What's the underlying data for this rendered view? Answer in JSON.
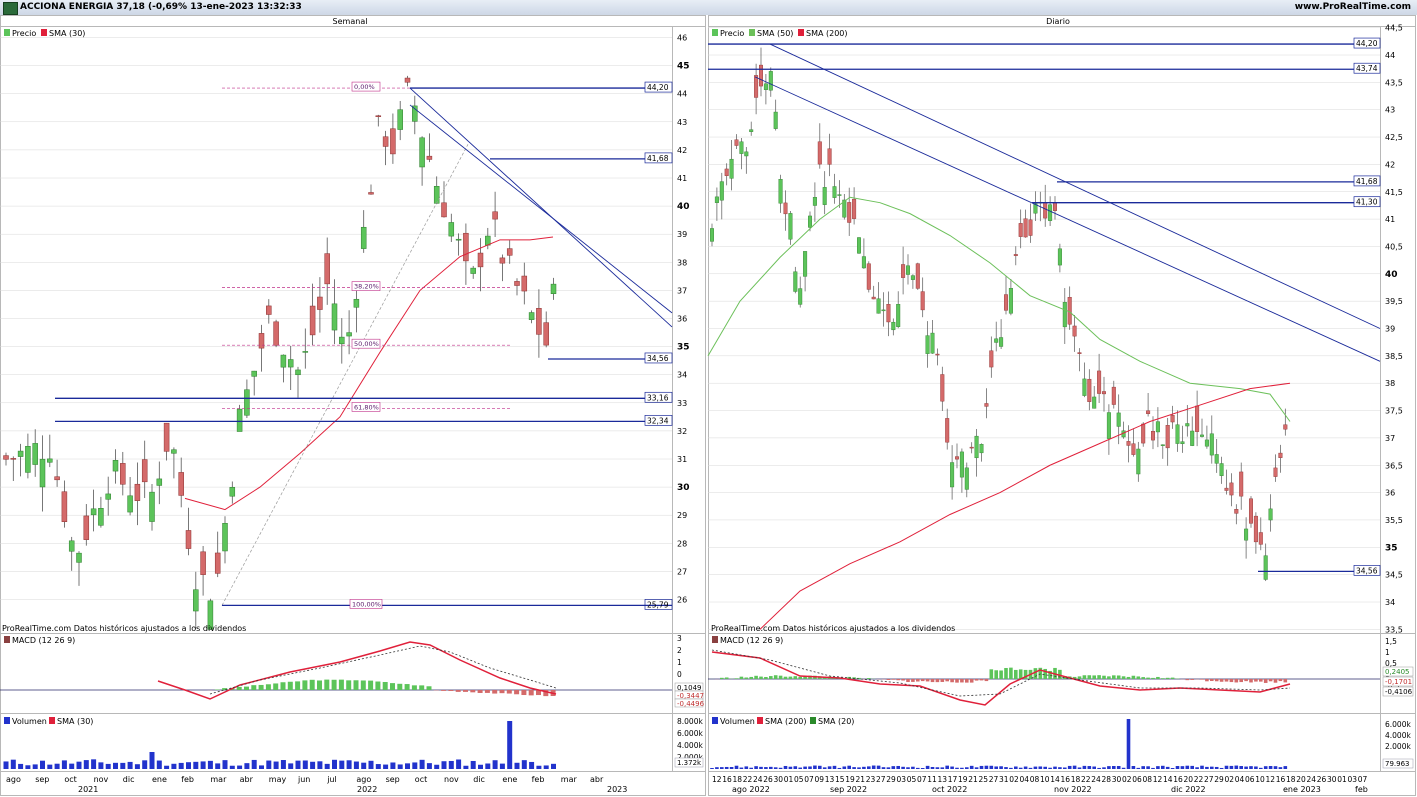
{
  "window": {
    "title": "ACCIONA ENERGIA 37,18 (-0,69% 13-ene-2023 13:32:33",
    "site": "www.ProRealTime.com",
    "icon": "prorealtime-logo-icon"
  },
  "colors": {
    "up": "#5cc45a",
    "down": "#d46a6a",
    "sma_red": "#e0203a",
    "sma_green": "#6cc05a",
    "blue_line": "#1a2a9a",
    "fib": "#c0308a",
    "volume": "#2233cc",
    "grid": "#d8d8d8"
  },
  "charts": [
    {
      "id": "weekly",
      "title": "Semanal",
      "legend": [
        {
          "label": "Precio",
          "color": "#5cc45a"
        },
        {
          "label": "SMA (30)",
          "color": "#e0203a"
        }
      ],
      "footer": "ProRealTime.com  Datos históricos ajustados a los dividendos",
      "price_axis_ticks": [
        26,
        27,
        28,
        29,
        30,
        31,
        32,
        33,
        34,
        35,
        36,
        37,
        38,
        39,
        40,
        41,
        42,
        43,
        44,
        45,
        46
      ],
      "bold_ticks": [
        30,
        35,
        40,
        45
      ],
      "level_labels": [
        "44,20",
        "41,68",
        "34,56",
        "33,16",
        "32,34",
        "25,79"
      ],
      "fib_labels": [
        "0,00%",
        "38,20%",
        "50,00%",
        "61,80%",
        "100,00%"
      ],
      "macd": {
        "legend": "MACD (12 26 9)",
        "ticks": [
          "3",
          "2",
          "1",
          "0",
          "-1"
        ],
        "values": [
          "0,1049",
          "-0,3447",
          "-0,4496"
        ]
      },
      "volume": {
        "legend": [
          "Volumen",
          "SMA (30)"
        ],
        "ticks": [
          "8.000k",
          "6.000k",
          "4.000k",
          "2.000k"
        ],
        "value": "1.372k"
      },
      "x_months": [
        "ago",
        "sep",
        "oct",
        "nov",
        "dic",
        "ene",
        "feb",
        "mar",
        "abr",
        "may",
        "jun",
        "jul",
        "ago",
        "sep",
        "oct",
        "nov",
        "dic",
        "ene",
        "feb",
        "mar",
        "abr"
      ],
      "x_years": [
        "2021",
        "2022",
        "2023"
      ]
    },
    {
      "id": "daily",
      "title": "Diario",
      "legend": [
        {
          "label": "Precio",
          "color": "#5cc45a"
        },
        {
          "label": "SMA (50)",
          "color": "#6cc05a"
        },
        {
          "label": "SMA (200)",
          "color": "#e0203a"
        }
      ],
      "footer": "ProRealTime.com  Datos históricos ajustados a los dividendos",
      "price_axis_ticks": [
        "33,5",
        "34",
        "34,5",
        "35",
        "35,5",
        "36",
        "36,5",
        "37",
        "37,5",
        "38",
        "38,5",
        "39",
        "39,5",
        "40",
        "40,5",
        "41",
        "41,5",
        "42",
        "42,5",
        "43",
        "43,5",
        "44",
        "44,5",
        "45",
        "45,5"
      ],
      "bold_ticks": [
        "35",
        "40",
        "45"
      ],
      "level_labels": [
        "44,20",
        "43,74",
        "41,68",
        "41,30",
        "34,56"
      ],
      "macd": {
        "legend": "MACD (12 26 9)",
        "ticks": [
          "1,5",
          "1",
          "0,5",
          "0",
          "-0,5"
        ],
        "values": [
          "0,2405",
          "-0,1701",
          "-0,4106"
        ]
      },
      "volume": {
        "legend": [
          "Volumen",
          "SMA (200)",
          "SMA (20)"
        ],
        "ticks": [
          "6.000k",
          "4.000k",
          "2.000k"
        ],
        "value": "79.963"
      },
      "x_days": [
        "12",
        "16",
        "18",
        "22",
        "24",
        "26",
        "30",
        "01",
        "05",
        "07",
        "09",
        "13",
        "15",
        "19",
        "21",
        "23",
        "27",
        "29",
        "03",
        "05",
        "07",
        "11",
        "13",
        "17",
        "19",
        "21",
        "25",
        "27",
        "31",
        "02",
        "04",
        "08",
        "10",
        "14",
        "16",
        "18",
        "22",
        "24",
        "28",
        "30",
        "02",
        "06",
        "08",
        "12",
        "14",
        "16",
        "20",
        "22",
        "27",
        "29",
        "02",
        "04",
        "06",
        "10",
        "12",
        "16",
        "18",
        "20",
        "24",
        "26",
        "30",
        "01",
        "03",
        "07"
      ],
      "x_months": [
        "ago 2022",
        "sep 2022",
        "oct 2022",
        "nov 2022",
        "dic 2022",
        "ene 2023",
        "feb"
      ]
    }
  ]
}
